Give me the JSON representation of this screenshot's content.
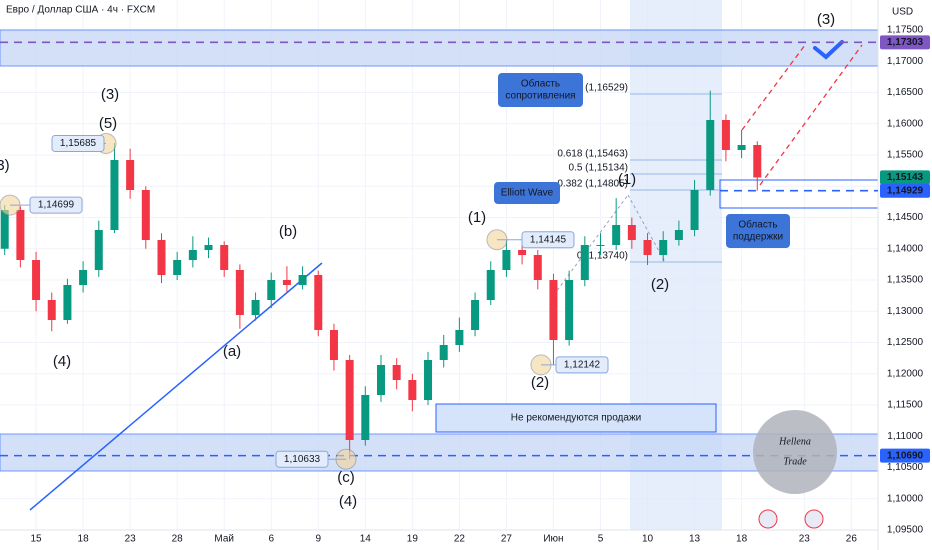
{
  "chart_data": {
    "type": "candlestick",
    "title": "Евро / Доллар США · 4ч · FXCM",
    "currency": "USD",
    "x": [
      -2,
      -1,
      0,
      1,
      2,
      3,
      4,
      5,
      6,
      7,
      8,
      9,
      10,
      11,
      12,
      13,
      14,
      15,
      16,
      17,
      18,
      19,
      20,
      21,
      22,
      23,
      24,
      25,
      26,
      27,
      28,
      29,
      30,
      31,
      32,
      33,
      34,
      35,
      36,
      37,
      38,
      39,
      40,
      41,
      42,
      43,
      44,
      45,
      46
    ],
    "open": [
      1.14,
      1.1462,
      1.1382,
      1.1318,
      1.1286,
      1.1342,
      1.1366,
      1.143,
      1.1542,
      1.1494,
      1.1414,
      1.1358,
      1.1382,
      1.1398,
      1.1406,
      1.1366,
      1.1294,
      1.1318,
      1.135,
      1.1342,
      1.1358,
      1.127,
      1.1222,
      1.1094,
      1.1166,
      1.1214,
      1.119,
      1.1158,
      1.1222,
      1.1246,
      1.127,
      1.1318,
      1.1366,
      1.1398,
      1.139,
      1.135,
      1.1254,
      1.135,
      1.1406,
      1.1406,
      1.1438,
      1.1414,
      1.139,
      1.1414,
      1.143,
      1.1494,
      1.1606,
      1.1558,
      1.1566
    ],
    "high": [
      1.147,
      1.1468,
      1.1395,
      1.133,
      1.1352,
      1.138,
      1.1445,
      1.1569,
      1.156,
      1.15,
      1.1425,
      1.1395,
      1.142,
      1.1418,
      1.1412,
      1.1375,
      1.133,
      1.1362,
      1.1372,
      1.1372,
      1.1365,
      1.128,
      1.123,
      1.118,
      1.123,
      1.1225,
      1.12,
      1.1235,
      1.1262,
      1.129,
      1.133,
      1.138,
      1.1415,
      1.141,
      1.1398,
      1.136,
      1.1365,
      1.142,
      1.1425,
      1.1481,
      1.145,
      1.1425,
      1.1428,
      1.1445,
      1.151,
      1.1653,
      1.1615,
      1.159,
      1.1572
    ],
    "low": [
      1.139,
      1.137,
      1.13,
      1.1268,
      1.128,
      1.133,
      1.1355,
      1.1425,
      1.148,
      1.14,
      1.1345,
      1.135,
      1.137,
      1.1385,
      1.1355,
      1.1272,
      1.1285,
      1.1305,
      1.133,
      1.1335,
      1.126,
      1.1205,
      1.1063,
      1.1085,
      1.1155,
      1.1175,
      1.114,
      1.115,
      1.121,
      1.1235,
      1.126,
      1.131,
      1.1355,
      1.1375,
      1.1335,
      1.1214,
      1.1245,
      1.134,
      1.139,
      1.1398,
      1.14,
      1.1374,
      1.138,
      1.1405,
      1.142,
      1.1485,
      1.154,
      1.1545,
      1.1493
    ],
    "close": [
      1.1462,
      1.1382,
      1.1318,
      1.1286,
      1.1342,
      1.1366,
      1.143,
      1.1542,
      1.1494,
      1.1414,
      1.1358,
      1.1382,
      1.1398,
      1.1406,
      1.1366,
      1.1294,
      1.1318,
      1.135,
      1.1342,
      1.1358,
      1.127,
      1.1222,
      1.1094,
      1.1166,
      1.1214,
      1.119,
      1.1158,
      1.1222,
      1.1246,
      1.127,
      1.1318,
      1.1366,
      1.1398,
      1.139,
      1.135,
      1.1254,
      1.135,
      1.1406,
      1.1406,
      1.1438,
      1.1414,
      1.139,
      1.1414,
      1.143,
      1.1494,
      1.1606,
      1.1558,
      1.1566,
      1.1514
    ],
    "up_color": "#089981",
    "down_color": "#f23645",
    "xlim": [
      -2.3,
      53.7
    ],
    "xticks": [
      {
        "value": 0,
        "label": "15"
      },
      {
        "value": 3,
        "label": "18"
      },
      {
        "value": 6,
        "label": "23"
      },
      {
        "value": 9,
        "label": "28"
      },
      {
        "value": 12,
        "label": "Май"
      },
      {
        "value": 15,
        "label": "6"
      },
      {
        "value": 18,
        "label": "9"
      },
      {
        "value": 21,
        "label": "14"
      },
      {
        "value": 24,
        "label": "19"
      },
      {
        "value": 27,
        "label": "22"
      },
      {
        "value": 30,
        "label": "27"
      },
      {
        "value": 33,
        "label": "Июн"
      },
      {
        "value": 36,
        "label": "5"
      },
      {
        "value": 39,
        "label": "10"
      },
      {
        "value": 42,
        "label": "13"
      },
      {
        "value": 45,
        "label": "18"
      },
      {
        "value": 49,
        "label": "23"
      },
      {
        "value": 52,
        "label": "26"
      }
    ],
    "ylim": [
      1.095,
      1.1798
    ],
    "yticks": [
      {
        "value": 1.175,
        "label": "1,17500"
      },
      {
        "value": 1.17,
        "label": "1,17000"
      },
      {
        "value": 1.165,
        "label": "1,16500"
      },
      {
        "value": 1.16,
        "label": "1,16000"
      },
      {
        "value": 1.155,
        "label": "1,15500"
      },
      {
        "value": 1.15,
        "label": "1,15000"
      },
      {
        "value": 1.145,
        "label": "1,14500"
      },
      {
        "value": 1.14,
        "label": "1,14000"
      },
      {
        "value": 1.135,
        "label": "1,13500"
      },
      {
        "value": 1.13,
        "label": "1,13000"
      },
      {
        "value": 1.125,
        "label": "1,12500"
      },
      {
        "value": 1.12,
        "label": "1,12000"
      },
      {
        "value": 1.115,
        "label": "1,11500"
      },
      {
        "value": 1.11,
        "label": "1,11000"
      },
      {
        "value": 1.105,
        "label": "1,10500"
      },
      {
        "value": 1.1,
        "label": "1,10000"
      },
      {
        "value": 1.095,
        "label": "1,09500"
      }
    ],
    "price_badges": [
      {
        "value": 1.17303,
        "label": "1,17303",
        "color": "#7e57c2"
      },
      {
        "value": 1.15143,
        "label": "1,15143",
        "color": "#089981"
      },
      {
        "value": 1.14929,
        "label": "1,14929",
        "color": "#2962ff"
      },
      {
        "value": 1.1069,
        "label": "1,10690",
        "color": "#2962ff"
      }
    ],
    "price_labels": [
      {
        "value": 1.15685,
        "label": "1,15685"
      },
      {
        "value": 1.14699,
        "label": "1,14699"
      },
      {
        "value": 1.14145,
        "label": "1,14145"
      },
      {
        "value": 1.12142,
        "label": "1,12142"
      },
      {
        "value": 1.10633,
        "label": "1,10633"
      }
    ],
    "wave_labels": [
      {
        "text": "3)",
        "color": "#2962ff"
      },
      {
        "text": "(3)",
        "color": "#f23645"
      },
      {
        "text": "(5)",
        "color": "#2962ff"
      },
      {
        "text": "(4)",
        "color": "#2962ff"
      },
      {
        "text": "(b)",
        "color": "#2962ff"
      },
      {
        "text": "(a)",
        "color": "#2962ff"
      },
      {
        "text": "(c)",
        "color": "#2962ff"
      },
      {
        "text": "(4)",
        "color": "#f23645"
      },
      {
        "text": "(1)",
        "color": "#2962ff"
      },
      {
        "text": "(2)",
        "color": "#2962ff"
      },
      {
        "text": "(1)",
        "color": "#131722"
      },
      {
        "text": "(2)",
        "color": "#131722"
      },
      {
        "text": "(3)",
        "color": "#131722"
      }
    ],
    "fib_labels": [
      "1 (1,16529)",
      "0.618 (1,15463)",
      "0.5 (1,15134)",
      "0.382 (1,14805)",
      "0 (1,13740)"
    ],
    "callouts": [
      [
        "Область",
        "сопротивления"
      ],
      [
        "Elliott Wave"
      ],
      [
        "Область",
        "поддержки"
      ]
    ],
    "banner": "Не рекомендуются продажи",
    "watermark": [
      "Hellena",
      "Trade"
    ]
  }
}
